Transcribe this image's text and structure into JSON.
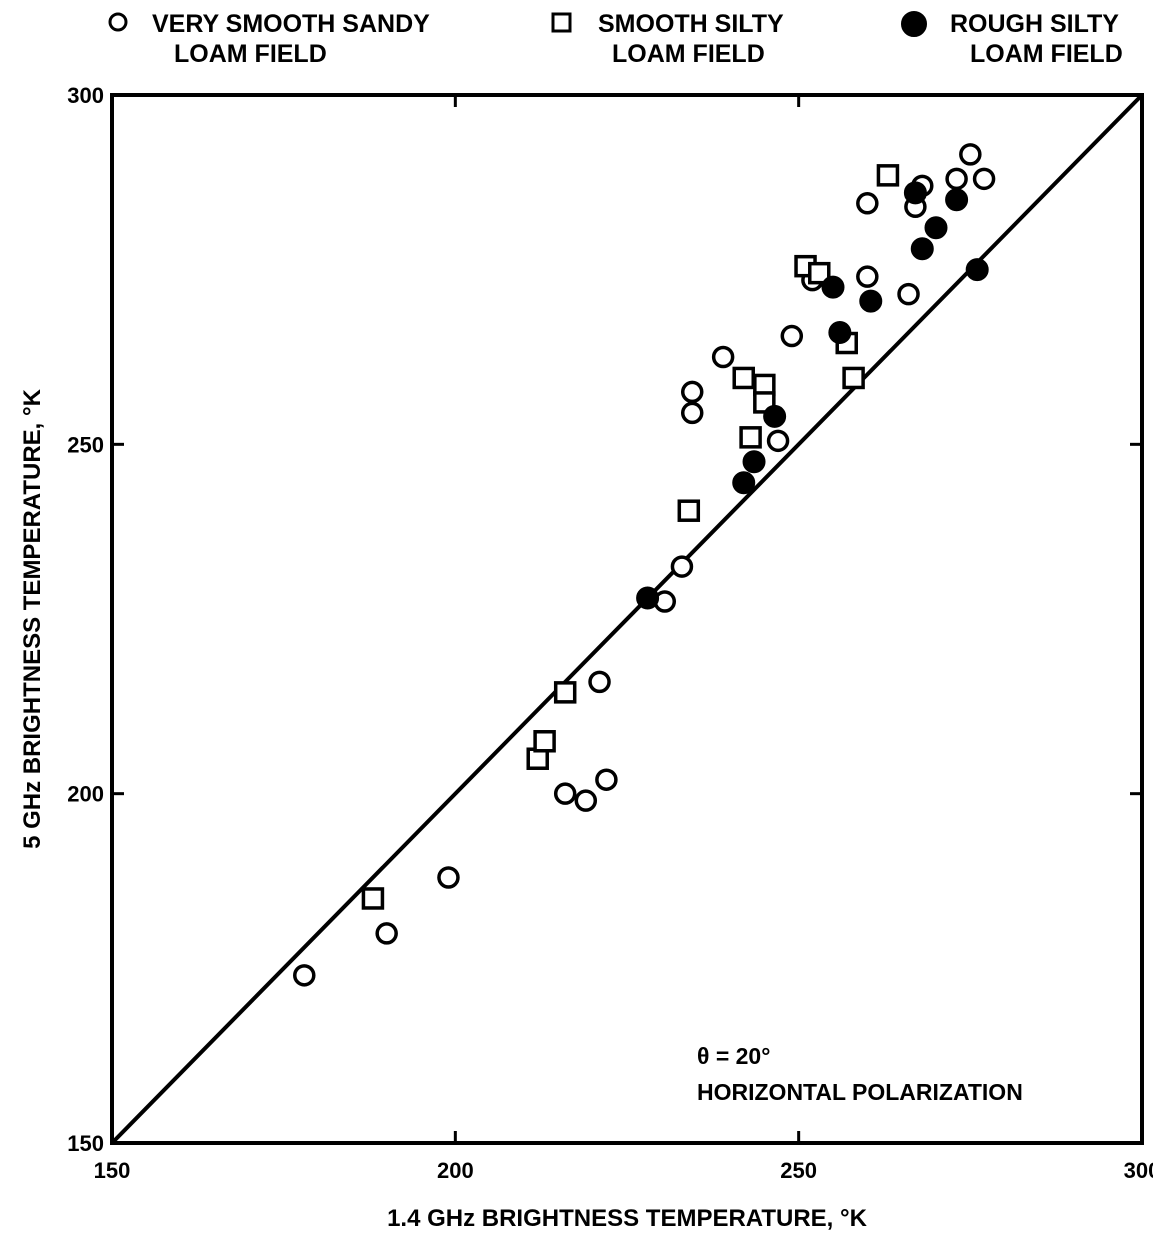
{
  "chart_data": {
    "type": "scatter",
    "xlabel": "1.4 GHz BRIGHTNESS TEMPERATURE, °K",
    "ylabel": "5 GHz BRIGHTNESS TEMPERATURE, °K",
    "xlim": [
      150,
      300
    ],
    "ylim": [
      150,
      300
    ],
    "x_ticks": [
      "150",
      "200",
      "250",
      "300"
    ],
    "y_ticks": [
      "150",
      "200",
      "250",
      "300"
    ],
    "grid": false,
    "legend_position": "top",
    "reference_line": {
      "description": "1:1 line",
      "from": [
        150,
        150
      ],
      "to": [
        300,
        300
      ]
    },
    "annotation": {
      "line1": "θ = 20°",
      "line2": "HORIZONTAL POLARIZATION"
    },
    "series": [
      {
        "name_line1": "VERY SMOOTH SANDY",
        "name_line2": "LOAM FIELD",
        "marker": "open-circle",
        "points": [
          [
            178,
            174
          ],
          [
            190,
            180
          ],
          [
            199,
            188
          ],
          [
            216,
            200
          ],
          [
            219,
            199
          ],
          [
            222,
            202
          ],
          [
            221,
            216
          ],
          [
            230.5,
            227.5
          ],
          [
            233,
            232.5
          ],
          [
            234.5,
            254.5
          ],
          [
            234.5,
            257.5
          ],
          [
            239,
            262.5
          ],
          [
            247,
            250.5
          ],
          [
            249,
            265.5
          ],
          [
            252,
            273.5
          ],
          [
            260,
            274
          ],
          [
            260,
            284.5
          ],
          [
            266,
            271.5
          ],
          [
            267,
            284
          ],
          [
            268,
            287
          ],
          [
            273,
            288
          ],
          [
            275,
            291.5
          ],
          [
            277,
            288
          ]
        ]
      },
      {
        "name_line1": "SMOOTH SILTY",
        "name_line2": "LOAM FIELD",
        "marker": "open-square",
        "points": [
          [
            188,
            185
          ],
          [
            212,
            205
          ],
          [
            213,
            207.5
          ],
          [
            216,
            214.5
          ],
          [
            234,
            240.5
          ],
          [
            242,
            259.5
          ],
          [
            243,
            251
          ],
          [
            245,
            258.5
          ],
          [
            245,
            256
          ],
          [
            251,
            275.5
          ],
          [
            253,
            274.5
          ],
          [
            257,
            264.5
          ],
          [
            258,
            259.5
          ],
          [
            263,
            288.5
          ]
        ]
      },
      {
        "name_line1": "ROUGH SILTY",
        "name_line2": "LOAM FIELD",
        "marker": "filled-circle",
        "points": [
          [
            228,
            228
          ],
          [
            242,
            244.5
          ],
          [
            243.5,
            247.5
          ],
          [
            246.5,
            254
          ],
          [
            255,
            272.5
          ],
          [
            256,
            266
          ],
          [
            260.5,
            270.5
          ],
          [
            267,
            286
          ],
          [
            268,
            278
          ],
          [
            270,
            281
          ],
          [
            273,
            285
          ],
          [
            276,
            275
          ]
        ]
      }
    ]
  }
}
